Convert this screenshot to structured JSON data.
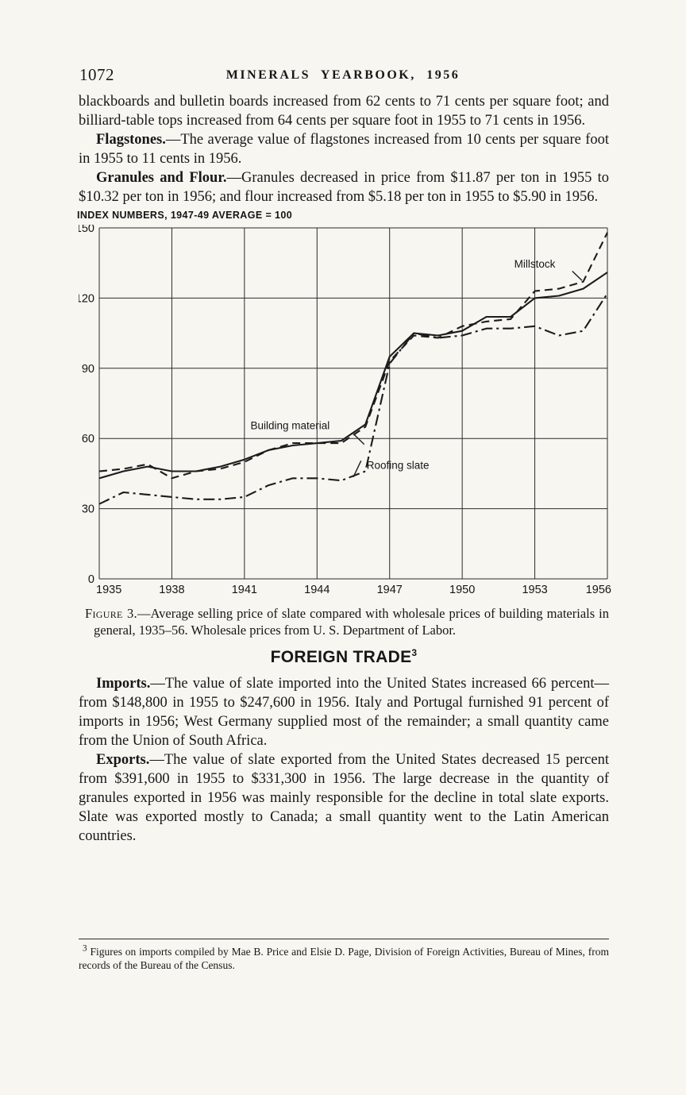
{
  "page": {
    "page_number": "1072",
    "running_header": "MINERALS YEARBOOK, 1956"
  },
  "paragraphs": {
    "intro": "blackboards and bulletin boards increased from 62 cents to 71 cents per square foot; and billiard-table tops increased from 64 cents per square foot in 1955 to 71 cents in 1956.",
    "flagstones_lead": "Flagstones.",
    "flagstones_body": "—The average value of flagstones increased from 10 cents per square foot in 1955 to 11 cents in 1956.",
    "granules_lead": "Granules and Flour.",
    "granules_body": "—Granules decreased in price from $11.87 per ton in 1955 to $10.32 per ton in 1956; and flour increased from $5.18 per ton in 1955 to $5.90 in 1956."
  },
  "figure": {
    "caption_label": "Figure 3.",
    "caption": "—Average selling price of slate compared with wholesale prices of building materials in general, 1935–56.  Wholesale prices from U. S. Department of Labor."
  },
  "foreign_trade": {
    "heading": "FOREIGN TRADE",
    "heading_superscript": "3",
    "imports_lead": "Imports.",
    "imports_body": "—The value of slate imported into the United States increased 66 percent—from $148,800 in 1955 to $247,600 in 1956. Italy and Portugal furnished 91 percent of imports in 1956; West Germany supplied most of the remainder; a small quantity came from the Union of South Africa.",
    "exports_lead": "Exports.",
    "exports_body": "—The value of slate exported from the United States decreased 15 percent from $391,600 in 1955 to $331,300 in 1956.  The large decrease in the quantity of granules exported in 1956 was mainly responsible for the decline in total slate exports.  Slate was exported mostly to Canada; a small quantity went to the Latin American countries."
  },
  "footnote": {
    "marker": "3",
    "text": " Figures on imports compiled by Mae B. Price and Elsie D. Page, Division of Foreign Activities, Bureau of Mines, from records of the Bureau of the Census."
  },
  "chart_data": {
    "type": "line",
    "title": "INDEX NUMBERS, 1947-49 AVERAGE = 100",
    "xlabel": "",
    "ylabel": "",
    "grid": true,
    "xlim": [
      1935,
      1956
    ],
    "ylim": [
      0,
      150
    ],
    "xticks": [
      1935,
      1938,
      1941,
      1944,
      1947,
      1950,
      1953,
      1956
    ],
    "yticks": [
      0,
      30,
      60,
      90,
      120,
      150
    ],
    "x": [
      1935,
      1936,
      1937,
      1938,
      1939,
      1940,
      1941,
      1942,
      1943,
      1944,
      1945,
      1946,
      1947,
      1948,
      1949,
      1950,
      1951,
      1952,
      1953,
      1954,
      1955,
      1956
    ],
    "series": [
      {
        "name": "Millstock",
        "style": "dashed",
        "values": [
          46,
          47,
          49,
          43,
          46,
          47,
          50,
          55,
          58,
          58,
          58,
          65,
          93,
          104,
          103,
          108,
          110,
          111,
          123,
          124,
          127,
          148
        ]
      },
      {
        "name": "Building material",
        "style": "solid",
        "values": [
          43,
          46,
          48,
          46,
          46,
          48,
          51,
          55,
          57,
          58,
          59,
          66,
          95,
          105,
          104,
          106,
          112,
          112,
          120,
          121,
          124,
          131
        ]
      },
      {
        "name": "Roofing slate",
        "style": "dashdot",
        "values": [
          32,
          37,
          36,
          35,
          34,
          34,
          35,
          40,
          43,
          43,
          42,
          46,
          92,
          105,
          103,
          104,
          107,
          107,
          108,
          104,
          106,
          122
        ]
      }
    ],
    "annotations": [
      {
        "text": "Millstock",
        "x": 1952.15,
        "y": 133,
        "anchor": "start",
        "leader": [
          1954.55,
          131.5,
          1954.95,
          127.5
        ]
      },
      {
        "text": "Building material",
        "x": 1941.25,
        "y": 64,
        "anchor": "start",
        "leader": [
          1945.55,
          61.5,
          1945.95,
          57.5
        ]
      },
      {
        "text": "Roofing slate",
        "x": 1946.05,
        "y": 47,
        "anchor": "start",
        "leader": [
          1945.5,
          43.5,
          1945.82,
          50.5
        ]
      }
    ]
  }
}
